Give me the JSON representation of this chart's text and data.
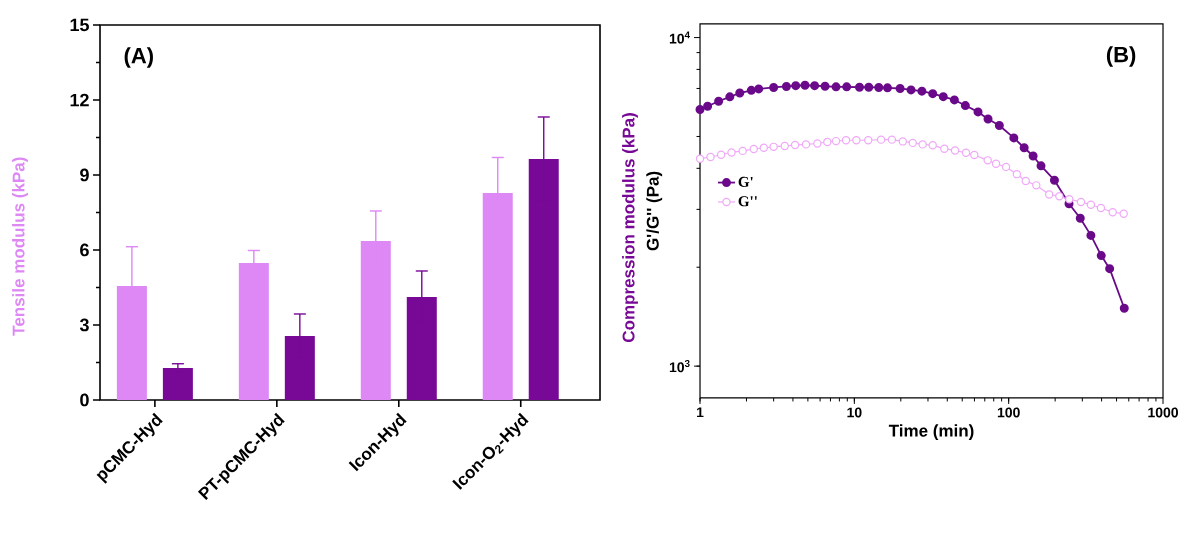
{
  "chart_data": [
    {
      "type": "bar",
      "categories": [
        "pCMC-Hyd",
        "PT-pCMC-Hyd",
        "Icon-Hyd",
        "Icon-O$_{2}$-Hyd"
      ],
      "series": [
        {
          "name": "Tensile modulus (kPa)",
          "color": "#dd88f5",
          "values": [
            4.56,
            5.48,
            6.36,
            8.28
          ],
          "errors": [
            1.57,
            0.5,
            1.2,
            1.42
          ]
        },
        {
          "name": "Compression modulus (kPa)",
          "color": "#780896",
          "values": [
            1.28,
            2.56,
            4.12,
            9.64
          ],
          "errors": [
            0.17,
            0.88,
            1.04,
            1.68
          ]
        }
      ],
      "ylim": [
        0,
        15
      ],
      "yticks": [
        0,
        3,
        6,
        9,
        12,
        15
      ],
      "annotations": [
        "(A)"
      ]
    },
    {
      "type": "line",
      "xlabel": "Time (min)",
      "ylabel": "G'/G'' (Pa)",
      "series": [
        {
          "name": "G'",
          "color": "#6a0a8a",
          "x": [
            1,
            1.12,
            1.32,
            1.56,
            1.81,
            2.15,
            2.4,
            3.0,
            3.63,
            4.17,
            4.79,
            5.53,
            6.46,
            7.61,
            8.92,
            10.8,
            12.4,
            14.4,
            16.4,
            19.8,
            23.3,
            27.4,
            32.2,
            37.7,
            44.5,
            52.4,
            63.3,
            73.5,
            87,
            108,
            126,
            144,
            162,
            198,
            246,
            291,
            341,
            398,
            451,
            561
          ],
          "values": [
            6040,
            6180,
            6400,
            6600,
            6780,
            6910,
            6980,
            7050,
            7100,
            7140,
            7160,
            7140,
            7110,
            7080,
            7080,
            7060,
            7060,
            7050,
            7030,
            7000,
            6930,
            6870,
            6750,
            6610,
            6460,
            6210,
            5940,
            5650,
            5400,
            4950,
            4620,
            4360,
            4070,
            3680,
            3120,
            2820,
            2500,
            2170,
            1980,
            1500
          ]
        },
        {
          "name": "G''",
          "color": "#f0a8f8",
          "x": [
            1,
            1.17,
            1.37,
            1.6,
            1.89,
            2.23,
            2.59,
            3.0,
            3.54,
            4.13,
            4.86,
            5.76,
            6.68,
            7.61,
            8.83,
            10.3,
            12.3,
            14.9,
            17.5,
            20.6,
            23.9,
            27.7,
            32.2,
            38.3,
            44.9,
            52.9,
            59.9,
            73.1,
            82.8,
            96.1,
            113,
            129,
            151,
            183,
            213,
            247,
            294,
            341,
            396,
            472,
            556
          ],
          "values": [
            4280,
            4330,
            4400,
            4470,
            4520,
            4580,
            4620,
            4650,
            4680,
            4710,
            4730,
            4760,
            4810,
            4840,
            4870,
            4870,
            4870,
            4890,
            4890,
            4830,
            4780,
            4730,
            4700,
            4590,
            4530,
            4460,
            4390,
            4230,
            4130,
            4040,
            3840,
            3660,
            3550,
            3330,
            3290,
            3220,
            3160,
            3100,
            3030,
            2940,
            2910
          ]
        }
      ],
      "xlim": [
        1,
        1000
      ],
      "ylim": [
        800,
        11000
      ],
      "xticks": [
        1,
        10,
        100,
        1000
      ],
      "yticks": [
        {
          "value": 1000,
          "label": "10$^{3}$"
        },
        {
          "value": 10000,
          "label": "10$^{4}$"
        }
      ],
      "log": "xy",
      "legend": "left",
      "marker": "circle",
      "annotations": [
        "(B)"
      ]
    }
  ]
}
